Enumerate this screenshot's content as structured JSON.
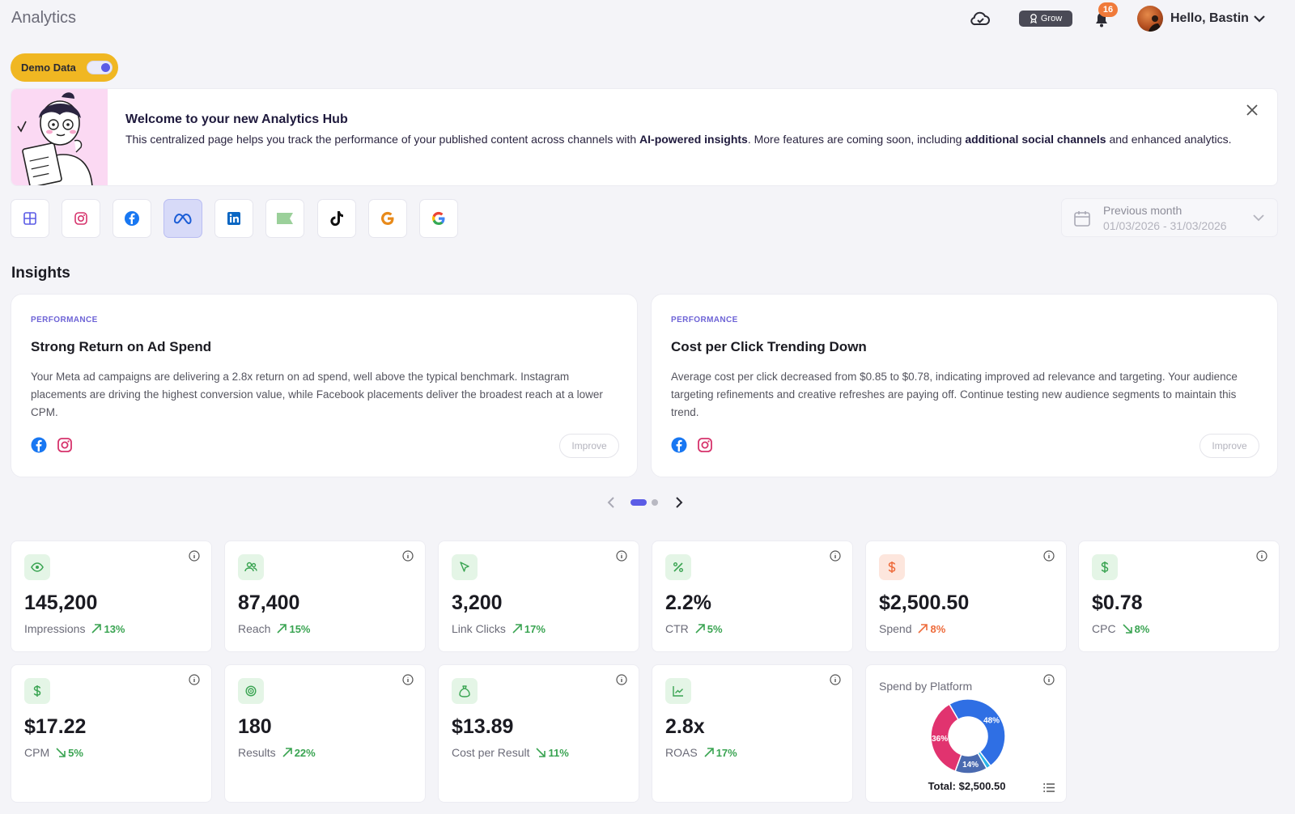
{
  "header": {
    "title": "Analytics",
    "grow_label": "Grow",
    "notification_count": "16",
    "greeting": "Hello, Bastin"
  },
  "demo": {
    "label": "Demo Data",
    "enabled": true
  },
  "banner": {
    "title": "Welcome to your new Analytics Hub",
    "text_before": "This centralized page helps you track the performance of your published content across channels with ",
    "bold1": "AI-powered insights",
    "text_mid": ". More features are coming soon, including ",
    "bold2": "additional social channels",
    "text_after": " and enhanced analytics."
  },
  "channels": [
    {
      "name": "all-channels",
      "icon": "grid-icon",
      "active": false
    },
    {
      "name": "instagram",
      "icon": "instagram-icon",
      "active": false
    },
    {
      "name": "facebook",
      "icon": "facebook-icon",
      "active": false
    },
    {
      "name": "meta",
      "icon": "meta-icon",
      "active": true
    },
    {
      "name": "linkedin",
      "icon": "linkedin-icon",
      "active": false
    },
    {
      "name": "flag",
      "icon": "flag-icon",
      "active": false
    },
    {
      "name": "tiktok",
      "icon": "tiktok-icon",
      "active": false
    },
    {
      "name": "google-business",
      "icon": "google-icon",
      "active": false
    },
    {
      "name": "google-ads",
      "icon": "google-icon",
      "active": false
    }
  ],
  "date_filter": {
    "label": "Previous month",
    "range": "01/03/2026 - 31/03/2026"
  },
  "insights": {
    "title": "Insights",
    "cards": [
      {
        "category": "PERFORMANCE",
        "title": "Strong Return on Ad Spend",
        "body": "Your Meta ad campaigns are delivering a 2.8x return on ad spend, well above the typical benchmark. Instagram placements are driving the highest conversion value, while Facebook placements deliver the broadest reach at a lower CPM.",
        "button": "Improve"
      },
      {
        "category": "PERFORMANCE",
        "title": "Cost per Click Trending Down",
        "body": "Average cost per click decreased from $0.85 to $0.78, indicating improved ad relevance and targeting. Your audience targeting refinements and creative refreshes are paying off. Continue testing new audience segments to maintain this trend.",
        "button": "Improve"
      }
    ],
    "page": 1,
    "pages": 2
  },
  "metrics": [
    {
      "label": "Impressions",
      "value": "145,200",
      "delta": "13%",
      "direction": "up",
      "tone": "green",
      "icon": "eye-icon"
    },
    {
      "label": "Reach",
      "value": "87,400",
      "delta": "15%",
      "direction": "up",
      "tone": "green",
      "icon": "users-icon"
    },
    {
      "label": "Link Clicks",
      "value": "3,200",
      "delta": "17%",
      "direction": "up",
      "tone": "green",
      "icon": "cursor-icon"
    },
    {
      "label": "CTR",
      "value": "2.2%",
      "delta": "5%",
      "direction": "up",
      "tone": "green",
      "icon": "percent-icon"
    },
    {
      "label": "Spend",
      "value": "$2,500.50",
      "delta": "8%",
      "direction": "up",
      "tone": "orange",
      "icon": "dollar-icon"
    },
    {
      "label": "CPC",
      "value": "$0.78",
      "delta": "8%",
      "direction": "down",
      "tone": "green",
      "icon": "dollar-icon"
    },
    {
      "label": "CPM",
      "value": "$17.22",
      "delta": "5%",
      "direction": "down",
      "tone": "green",
      "icon": "dollar-icon"
    },
    {
      "label": "Results",
      "value": "180",
      "delta": "22%",
      "direction": "up",
      "tone": "green",
      "icon": "target-icon"
    },
    {
      "label": "Cost per Result",
      "value": "$13.89",
      "delta": "11%",
      "direction": "down",
      "tone": "green",
      "icon": "money-bag-icon"
    },
    {
      "label": "ROAS",
      "value": "2.8x",
      "delta": "17%",
      "direction": "up",
      "tone": "green",
      "icon": "chart-line-icon"
    }
  ],
  "spend_by_platform": {
    "title": "Spend by Platform",
    "total": "Total: $2,500.50",
    "chart_data": {
      "type": "pie",
      "categories": [
        "",
        "",
        "",
        ""
      ],
      "values": [
        48,
        2,
        14,
        36
      ],
      "labels": [
        "48%",
        "",
        "14%",
        "36%"
      ],
      "colors": [
        "#2f6fe4",
        "#2bb3e8",
        "#4a6ab0",
        "#e1336f"
      ]
    }
  },
  "colors": {
    "accent": "#5b5ce6",
    "positive": "#3aa452",
    "negative": "#ee6b3b",
    "demo_pill": "#f0b722"
  }
}
